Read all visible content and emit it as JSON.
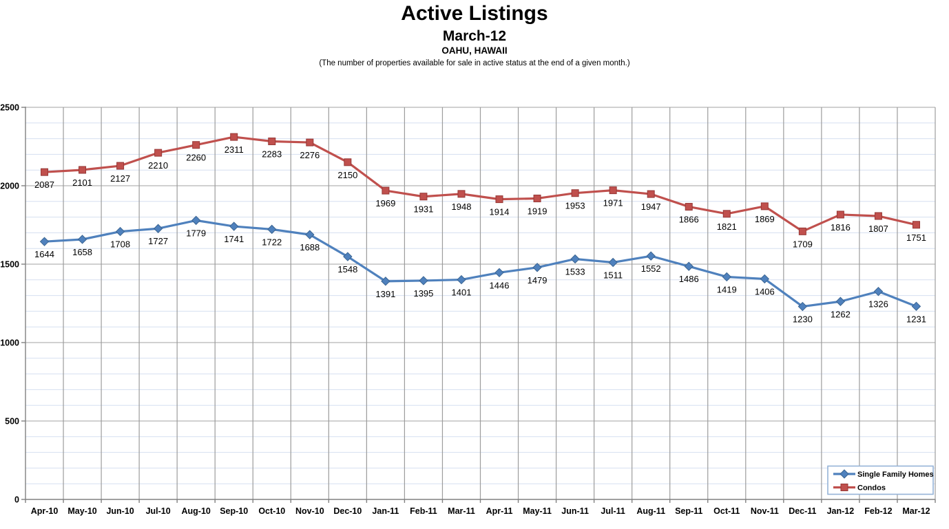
{
  "header": {
    "title": "Active Listings",
    "subtitle": "March-12",
    "location": "OAHU, HAWAII",
    "description": "(The number of properties available for sale in active status at the end of a given month.)"
  },
  "chart_data": {
    "type": "line",
    "categories": [
      "Apr-10",
      "May-10",
      "Jun-10",
      "Jul-10",
      "Aug-10",
      "Sep-10",
      "Oct-10",
      "Nov-10",
      "Dec-10",
      "Jan-11",
      "Feb-11",
      "Mar-11",
      "Apr-11",
      "May-11",
      "Jun-11",
      "Jul-11",
      "Aug-11",
      "Sep-11",
      "Oct-11",
      "Nov-11",
      "Dec-11",
      "Jan-12",
      "Feb-12",
      "Mar-12"
    ],
    "series": [
      {
        "name": "Single Family Homes",
        "color": "#4F81BD",
        "marker": "diamond",
        "marker_stroke": "#3A6491",
        "values": [
          1644,
          1658,
          1708,
          1727,
          1779,
          1741,
          1722,
          1688,
          1548,
          1391,
          1395,
          1401,
          1446,
          1479,
          1533,
          1511,
          1552,
          1486,
          1419,
          1406,
          1230,
          1262,
          1326,
          1231
        ]
      },
      {
        "name": "Condos",
        "color": "#C0504D",
        "marker": "square",
        "marker_stroke": "#953735",
        "values": [
          2087,
          2101,
          2127,
          2210,
          2260,
          2311,
          2283,
          2276,
          2150,
          1969,
          1931,
          1948,
          1914,
          1919,
          1953,
          1971,
          1947,
          1866,
          1821,
          1869,
          1709,
          1816,
          1807,
          1751
        ]
      }
    ],
    "ylim": [
      0,
      2500
    ],
    "y_major_ticks": [
      0,
      500,
      1000,
      1500,
      2000,
      2500
    ],
    "y_minor_step": 100,
    "data_labels": true,
    "legend": {
      "position": "bottom-right",
      "border_color": "#95B3D7"
    },
    "grid": {
      "minor_h_color": "#D5DFF0",
      "major_h_color": "#A0A0A0",
      "vertical_color": "#9C9C9C",
      "axis_color": "#808080"
    }
  }
}
